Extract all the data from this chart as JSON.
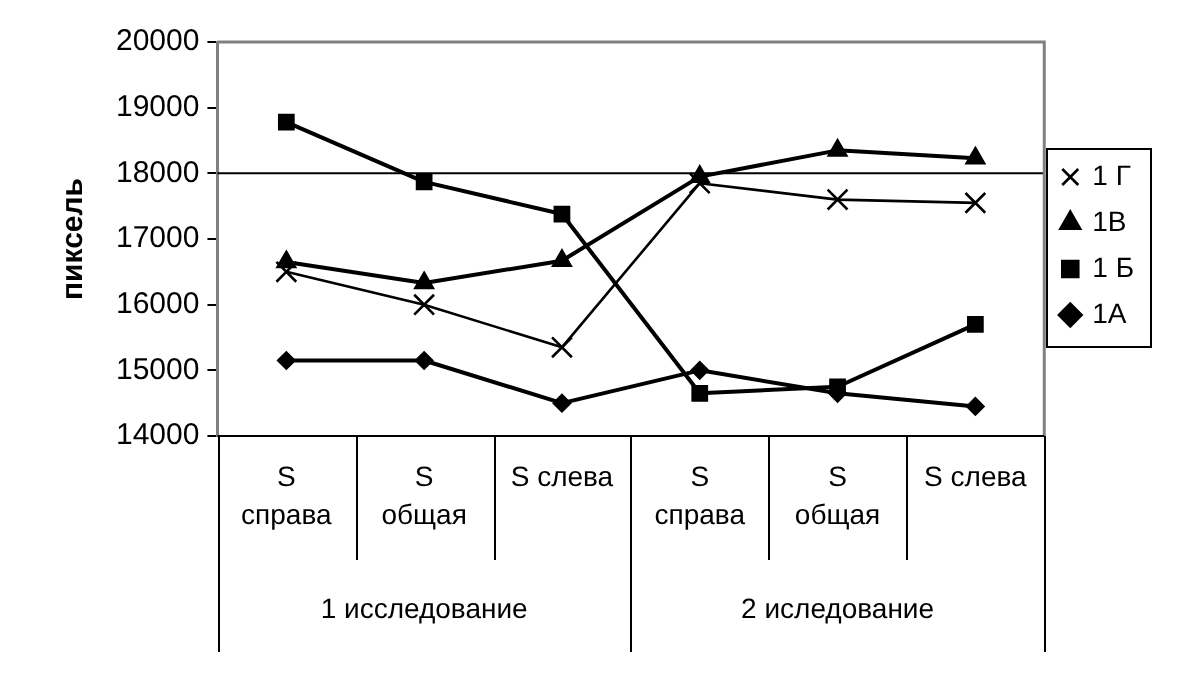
{
  "chart_data": {
    "type": "line",
    "ylabel": "пиксель",
    "categories": [
      "S справа",
      "S общая",
      "S слева",
      "S справа",
      "S общая",
      "S слева"
    ],
    "annotations": [
      "1 исследование",
      "2 иследование"
    ],
    "series": [
      {
        "name": "1А",
        "color": "#000000",
        "marker": "diamond",
        "values": [
          15150,
          15150,
          14500,
          15000,
          14650,
          14450
        ]
      },
      {
        "name": "1 Б",
        "color": "#000000",
        "marker": "square",
        "values": [
          18780,
          17870,
          17380,
          14650,
          14750,
          15700
        ]
      },
      {
        "name": "1В",
        "color": "#000000",
        "marker": "triangle",
        "values": [
          16650,
          16330,
          16670,
          17950,
          18350,
          18230
        ]
      },
      {
        "name": "1 Г",
        "color": "#000000",
        "marker": "cross",
        "values": [
          16500,
          16000,
          15350,
          17850,
          17600,
          17550
        ]
      }
    ],
    "ylim": [
      14000,
      20000
    ],
    "yticks": [
      14000,
      15000,
      16000,
      17000,
      18000,
      19000,
      20000
    ],
    "ref_lines": [
      {
        "axis": "y",
        "value": 18000,
        "color": "#000000"
      }
    ],
    "legend": "right"
  }
}
